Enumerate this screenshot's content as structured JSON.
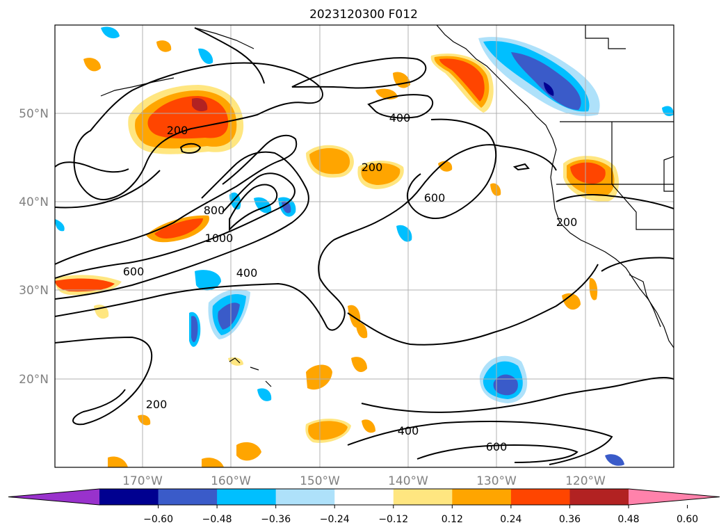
{
  "title": "2023120300 F012",
  "map": {
    "lon_ticks": [
      "170°W",
      "160°W",
      "150°W",
      "140°W",
      "130°W",
      "120°W"
    ],
    "lat_ticks": [
      "50°N",
      "40°N",
      "30°N",
      "20°N"
    ]
  },
  "contour_labels": [
    "200",
    "400",
    "200",
    "600",
    "800",
    "1000",
    "600",
    "400",
    "200",
    "200",
    "400",
    "600"
  ],
  "colorbar": {
    "ticks": [
      "−0.60",
      "−0.48",
      "−0.36",
      "−0.24",
      "−0.12",
      "0.12",
      "0.24",
      "0.36",
      "0.48",
      "0.60"
    ],
    "colors": [
      "#9932cc",
      "#000090",
      "#3a5bc9",
      "#00bfff",
      "#aee1fa",
      "#ffffff",
      "#ffe680",
      "#ffa500",
      "#ff4500",
      "#b22222",
      "#ff82ab"
    ]
  }
}
